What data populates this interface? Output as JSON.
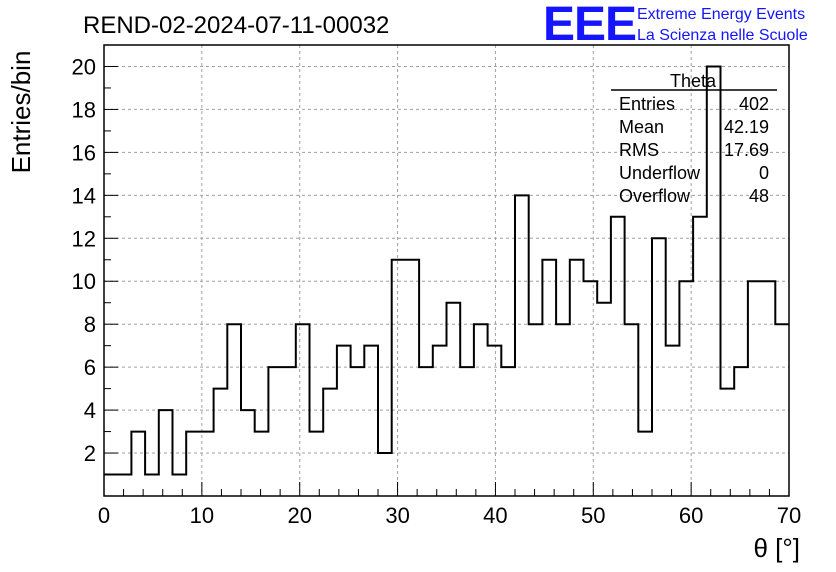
{
  "chart_data": {
    "type": "bar",
    "style": "step-histogram",
    "title": "REND-02-2024-07-11-00032",
    "xlabel": "θ [°]",
    "ylabel": "Entries/bin",
    "xlim": [
      0,
      70
    ],
    "ylim": [
      0,
      21
    ],
    "grid": true,
    "bin_width": 1.4,
    "x_ticks": [
      0,
      10,
      20,
      30,
      40,
      50,
      60,
      70
    ],
    "y_ticks": [
      2,
      4,
      6,
      8,
      10,
      12,
      14,
      16,
      18,
      20
    ],
    "values": [
      1,
      1,
      3,
      1,
      4,
      1,
      3,
      3,
      5,
      8,
      4,
      3,
      6,
      6,
      8,
      3,
      5,
      7,
      6,
      7,
      2,
      11,
      11,
      6,
      7,
      9,
      6,
      8,
      7,
      6,
      14,
      8,
      11,
      8,
      11,
      10,
      9,
      13,
      8,
      3,
      12,
      7,
      10,
      13,
      20,
      5,
      6,
      10,
      10,
      8
    ]
  },
  "stats_box": {
    "title": "Theta",
    "rows": [
      {
        "label": "Entries",
        "value": "402"
      },
      {
        "label": "Mean",
        "value": "42.19"
      },
      {
        "label": "RMS",
        "value": "17.69"
      },
      {
        "label": "Underflow",
        "value": "0"
      },
      {
        "label": "Overflow",
        "value": "48"
      }
    ]
  },
  "logo": {
    "mark": "EEE",
    "line1": "Extreme Energy Events",
    "line2": "La Scienza nelle Scuole",
    "color": "#1414ff"
  }
}
